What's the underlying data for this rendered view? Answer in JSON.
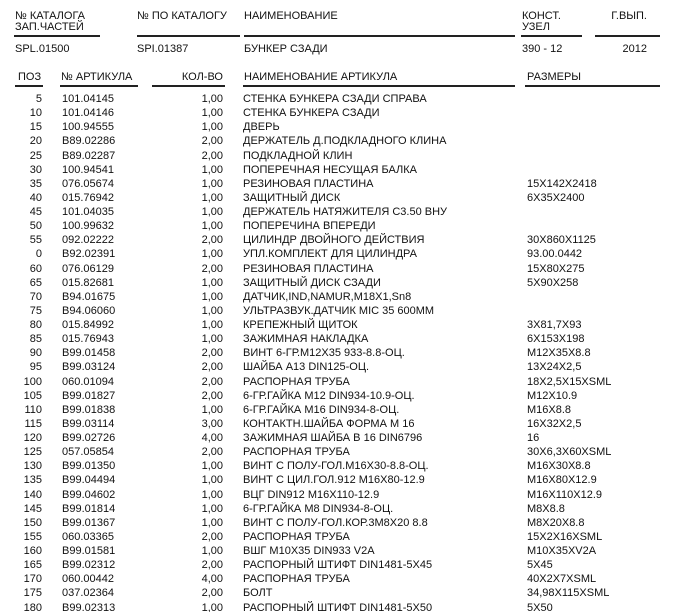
{
  "header": {
    "labels": {
      "catalog_no": "№ КАТАЛОГА",
      "catalog_no_2": "ЗАП.ЧАСТЕЙ",
      "by_catalog": "№ ПО КАТАЛОГУ",
      "name": "НАИМЕНОВАНИЕ",
      "assembly": "КОНСТ.",
      "assembly_2": "УЗЕЛ",
      "year": "Г.ВЫП."
    },
    "values": {
      "catalog_no": "SPL.01500",
      "by_catalog": "SPI.01387",
      "name": "БУНКЕР СЗАДИ",
      "assembly": "390 - 12",
      "year": "2012"
    }
  },
  "table": {
    "columns": [
      "ПОЗ",
      "№ АРТИКУЛА",
      "КОЛ-ВО",
      "НАИМЕНОВАНИЕ АРТИКУЛА",
      "РАЗМЕРЫ"
    ],
    "rows": [
      [
        "5",
        "101.04145",
        "1,00",
        "СТЕНКА БУНКЕРА СЗАДИ СПРАВА",
        ""
      ],
      [
        "10",
        "101.04146",
        "1,00",
        "СТЕНКА БУНКЕРА СЗАДИ",
        ""
      ],
      [
        "15",
        "100.94555",
        "1,00",
        "ДВЕРЬ",
        ""
      ],
      [
        "20",
        "B89.02286",
        "2,00",
        "ДЕРЖАТЕЛЬ Д.ПОДКЛАДНОГО КЛИНА",
        ""
      ],
      [
        "25",
        "B89.02287",
        "2,00",
        "ПОДКЛАДНОЙ КЛИН",
        ""
      ],
      [
        "30",
        "100.94541",
        "1,00",
        "ПОПЕРЕЧНАЯ НЕСУЩАЯ БАЛКА",
        ""
      ],
      [
        "35",
        "076.05674",
        "1,00",
        "РЕЗИНОВАЯ ПЛАСТИНА",
        "15X142X2418"
      ],
      [
        "40",
        "015.76942",
        "1,00",
        "ЗАЩИТНЫЙ ДИСК",
        "6X35X2400"
      ],
      [
        "45",
        "101.04035",
        "1,00",
        "ДЕРЖАТЕЛЬ НАТЯЖИТЕЛЯ C3.50 ВНУ",
        ""
      ],
      [
        "50",
        "100.99632",
        "1,00",
        "ПОПЕРЕЧИНА ВПЕРЕДИ",
        ""
      ],
      [
        "55",
        "092.02222",
        "2,00",
        "ЦИЛИНДР ДВОЙНОГО ДЕЙСТВИЯ",
        "30X860X1125"
      ],
      [
        "0",
        "B92.02391",
        "1,00",
        "УПЛ.КОМПЛЕКТ ДЛЯ ЦИЛИНДРА",
        "93.00.0442"
      ],
      [
        "60",
        "076.06129",
        "2,00",
        "РЕЗИНОВАЯ ПЛАСТИНА",
        "15X80X275"
      ],
      [
        "65",
        "015.82681",
        "1,00",
        "ЗАЩИТНЫЙ ДИСК СЗАДИ",
        "5X90X258"
      ],
      [
        "70",
        "B94.01675",
        "1,00",
        "ДАТЧИК,IND,NAMUR,M18X1,Sn8",
        ""
      ],
      [
        "75",
        "B94.06060",
        "1,00",
        "УЛЬТРАЗВУК.ДАТЧИК MIC 35 600MM",
        ""
      ],
      [
        "80",
        "015.84992",
        "1,00",
        "КРЕПЕЖНЫЙ ЩИТОК",
        "3X81,7X93"
      ],
      [
        "85",
        "015.76943",
        "1,00",
        "ЗАЖИМНАЯ НАКЛАДКА",
        "6X153X198"
      ],
      [
        "90",
        "B99.01458",
        "2,00",
        "ВИНТ 6-ГР.M12X35 933-8.8-ОЦ.",
        "M12X35X8.8"
      ],
      [
        "95",
        "B99.03124",
        "2,00",
        "ШАЙБА A13 DIN125-ОЦ.",
        "13X24X2,5"
      ],
      [
        "100",
        "060.01094",
        "2,00",
        "РАСПОРНАЯ ТРУБА",
        "18X2,5X15XSML"
      ],
      [
        "105",
        "B99.01827",
        "2,00",
        "6-ГР.ГАЙКА M12 DIN934-10.9-ОЦ.",
        "M12X10.9"
      ],
      [
        "110",
        "B99.01838",
        "1,00",
        "6-ГР.ГАЙКА M16 DIN934-8-ОЦ.",
        "M16X8.8"
      ],
      [
        "115",
        "B99.03114",
        "3,00",
        "КОНТАКТН.ШАЙБА  ФОРМА M 16",
        "16X32X2,5"
      ],
      [
        "120",
        "B99.02726",
        "4,00",
        "ЗАЖИМНАЯ ШАЙБА B 16 DIN6796",
        "16"
      ],
      [
        "125",
        "057.05854",
        "2,00",
        "РАСПОРНАЯ ТРУБА",
        "30X6,3X60XSML"
      ],
      [
        "130",
        "B99.01350",
        "1,00",
        "ВИНТ С ПОЛУ-ГОЛ.M16X30-8.8-ОЦ.",
        "M16X30X8.8"
      ],
      [
        "135",
        "B99.04494",
        "1,00",
        "ВИНТ С ЦИЛ.ГОЛ.912 M16X80-12.9",
        "M16X80X12.9"
      ],
      [
        "140",
        "B99.04602",
        "1,00",
        "ВЦГ DIN912 M16X110-12.9",
        "M16X110X12.9"
      ],
      [
        "145",
        "B99.01814",
        "1,00",
        "6-ГР.ГАЙКА M8 DIN934-8-ОЦ.",
        "M8X8.8"
      ],
      [
        "150",
        "B99.01367",
        "1,00",
        "ВИНТ С ПОЛУ-ГОЛ.КОР.3M8X20 8.8",
        "M8X20X8.8"
      ],
      [
        "155",
        "060.03365",
        "2,00",
        "РАСПОРНАЯ ТРУБА",
        "15X2X16XSML"
      ],
      [
        "160",
        "B99.01581",
        "1,00",
        "ВШГ M10X35 DIN933 V2A",
        "M10X35XV2A"
      ],
      [
        "165",
        "B99.02312",
        "2,00",
        "РАСПОРНЫЙ ШТИФТ DIN1481-5X45",
        "5X45"
      ],
      [
        "170",
        "060.00442",
        "4,00",
        "РАСПОРНАЯ ТРУБА",
        "40X2X7XSML"
      ],
      [
        "175",
        "037.02364",
        "2,00",
        "БОЛТ",
        "34,98X115XSML"
      ],
      [
        "180",
        "B99.02313",
        "1,00",
        "РАСПОРНЫЙ ШТИФТ DIN1481-5X50",
        "5X50"
      ]
    ]
  }
}
